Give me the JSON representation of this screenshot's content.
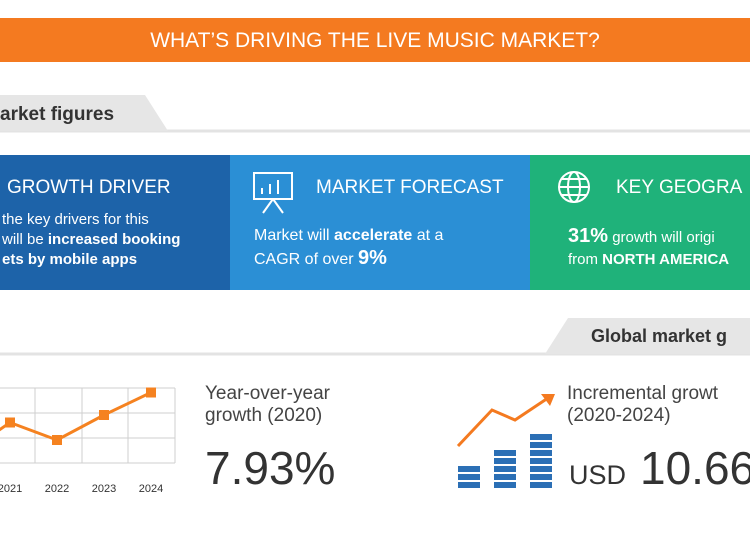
{
  "header": {
    "title": "WHAT’S DRIVING THE LIVE MUSIC MARKET?"
  },
  "section1": {
    "title": "arket figures"
  },
  "cards": [
    {
      "title": "GROWTH DRIVER",
      "lines": [
        [
          "the key drivers for this"
        ],
        [
          "will be ",
          "increased booking"
        ],
        [
          "ets by mobile apps"
        ]
      ]
    },
    {
      "title": "MARKET FORECAST",
      "lines": [
        [
          "Market will ",
          "accelerate",
          " at a"
        ],
        [
          "CAGR of over ",
          "9%"
        ]
      ]
    },
    {
      "title": "KEY GEOGRA",
      "lines": [
        [
          "31%",
          " growth will origi"
        ],
        [
          "from ",
          "NORTH AMERICA"
        ]
      ]
    }
  ],
  "section2": {
    "title": "Global market g"
  },
  "chart": {
    "type": "line",
    "categories": [
      null,
      "2021",
      "2022",
      "2023",
      "2024"
    ],
    "values": [
      0.4,
      1.7,
      1.0,
      2.0,
      2.9
    ],
    "color": "#f58220"
  },
  "yoy": {
    "label1": "Year-over-year",
    "label2": "growth (2020)",
    "value": "7.93%"
  },
  "incremental": {
    "label1": "Incremental growt",
    "label2": "(2020-2024)",
    "unit": "USD",
    "value": "10.66"
  }
}
